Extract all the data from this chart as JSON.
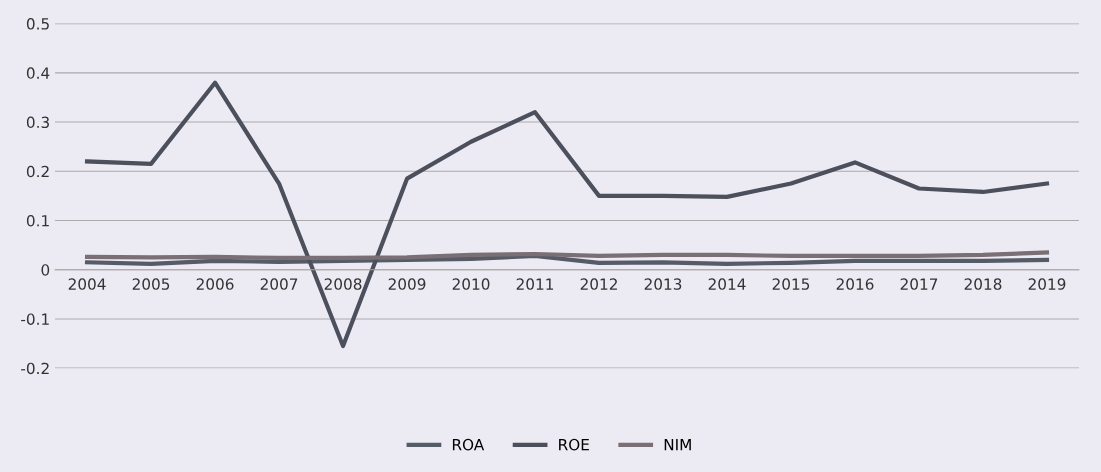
{
  "chart_data": {
    "type": "line",
    "categories": [
      "2004",
      "2005",
      "2006",
      "2007",
      "2008",
      "2009",
      "2010",
      "2011",
      "2012",
      "2013",
      "2014",
      "2015",
      "2016",
      "2017",
      "2018",
      "2019"
    ],
    "series": [
      {
        "name": "ROA",
        "color": "#565b68",
        "values": [
          0.015,
          0.012,
          0.018,
          0.016,
          0.018,
          0.02,
          0.022,
          0.028,
          0.014,
          0.015,
          0.012,
          0.014,
          0.018,
          0.018,
          0.018,
          0.02
        ]
      },
      {
        "name": "ROE",
        "color": "#4b505c",
        "values": [
          0.22,
          0.215,
          0.38,
          0.175,
          -0.155,
          0.185,
          0.26,
          0.32,
          0.15,
          0.15,
          0.148,
          0.175,
          0.218,
          0.165,
          0.158,
          0.175
        ]
      },
      {
        "name": "NIM",
        "color": "#7a6f74",
        "values": [
          0.026,
          0.025,
          0.026,
          0.024,
          0.024,
          0.025,
          0.03,
          0.032,
          0.028,
          0.03,
          0.03,
          0.028,
          0.028,
          0.028,
          0.03,
          0.035
        ]
      }
    ],
    "ylim": [
      -0.2,
      0.5
    ],
    "yticks": [
      -0.2,
      -0.1,
      0,
      0.1,
      0.2,
      0.3,
      0.4,
      0.5
    ],
    "grid": "y",
    "legend": "bottom",
    "marker": "none",
    "line_style": "solid"
  }
}
